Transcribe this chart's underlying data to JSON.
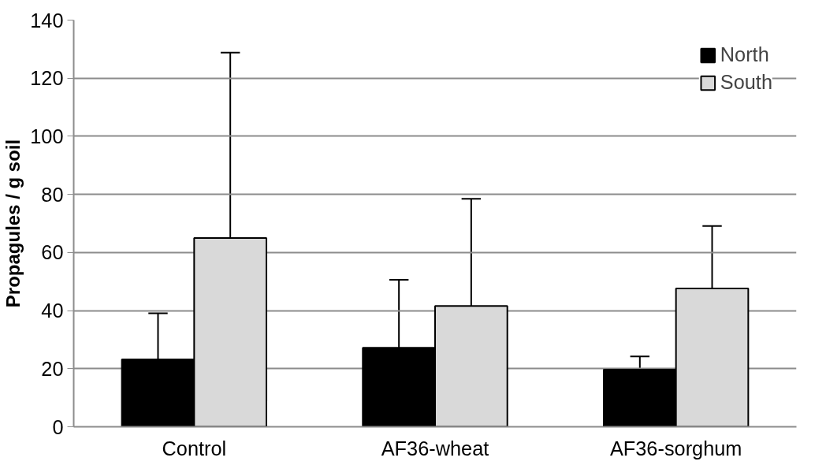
{
  "chart_data": {
    "type": "bar",
    "ylabel": "Propagules / g soil",
    "categories": [
      "Control",
      "AF36-wheat",
      "AF36-sorghum"
    ],
    "series": [
      {
        "name": "North",
        "color": "#000000",
        "values": [
          23.2,
          27.2,
          19.7
        ],
        "errors": [
          [
            23.2,
            39.1
          ],
          [
            27.2,
            50.6
          ],
          [
            19.7,
            24.2
          ]
        ]
      },
      {
        "name": "South",
        "color": "#d9d9d9",
        "values": [
          65.0,
          41.6,
          47.6
        ],
        "errors": [
          [
            65.0,
            128.8
          ],
          [
            41.6,
            78.5
          ],
          [
            47.6,
            69.1
          ]
        ]
      }
    ],
    "ylim": [
      0,
      140
    ],
    "yticks": [
      0,
      20,
      40,
      60,
      80,
      100,
      120,
      140
    ],
    "grid": "y",
    "legend": "top right"
  }
}
